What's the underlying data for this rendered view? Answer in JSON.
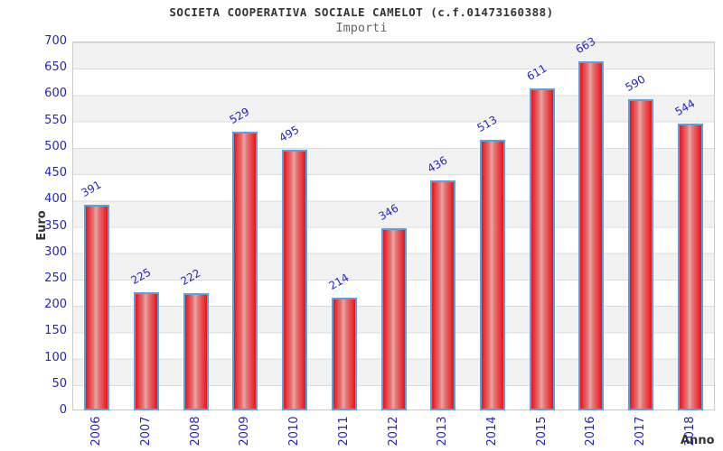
{
  "chart_data": {
    "type": "bar",
    "title": "SOCIETA COOPERATIVA SOCIALE CAMELOT (c.f.01473160388)",
    "subtitle": "Importi",
    "xlabel": "Anno",
    "ylabel": "Euro",
    "categories": [
      "2006",
      "2007",
      "2008",
      "2009",
      "2010",
      "2011",
      "2012",
      "2013",
      "2014",
      "2015",
      "2016",
      "2017",
      "2018"
    ],
    "values": [
      391,
      225,
      222,
      529,
      495,
      214,
      346,
      436,
      513,
      611,
      663,
      590,
      544
    ],
    "ylim": [
      0,
      700
    ],
    "y_ticks": [
      0,
      50,
      100,
      150,
      200,
      250,
      300,
      350,
      400,
      450,
      500,
      550,
      600,
      650,
      700
    ],
    "grid": "horizontal alternating 50-unit bands, light gray lines at each tick",
    "legend": "none",
    "value_labels": "shown above each bar, rotated -30deg",
    "x_tick_rotation": -90,
    "colors": {
      "bar_fill_edge": "#ee1118",
      "bar_fill_center": "#eaa6a6",
      "bar_border": "#55a3e0",
      "tick_text": "#2323cd",
      "band_gray": "#f2f2f2",
      "gridline": "#dcdcdc",
      "plot_border": "#cccccc",
      "title_text": "#333333",
      "subtitle_text": "#666666",
      "axis_label_text": "#333333"
    }
  }
}
